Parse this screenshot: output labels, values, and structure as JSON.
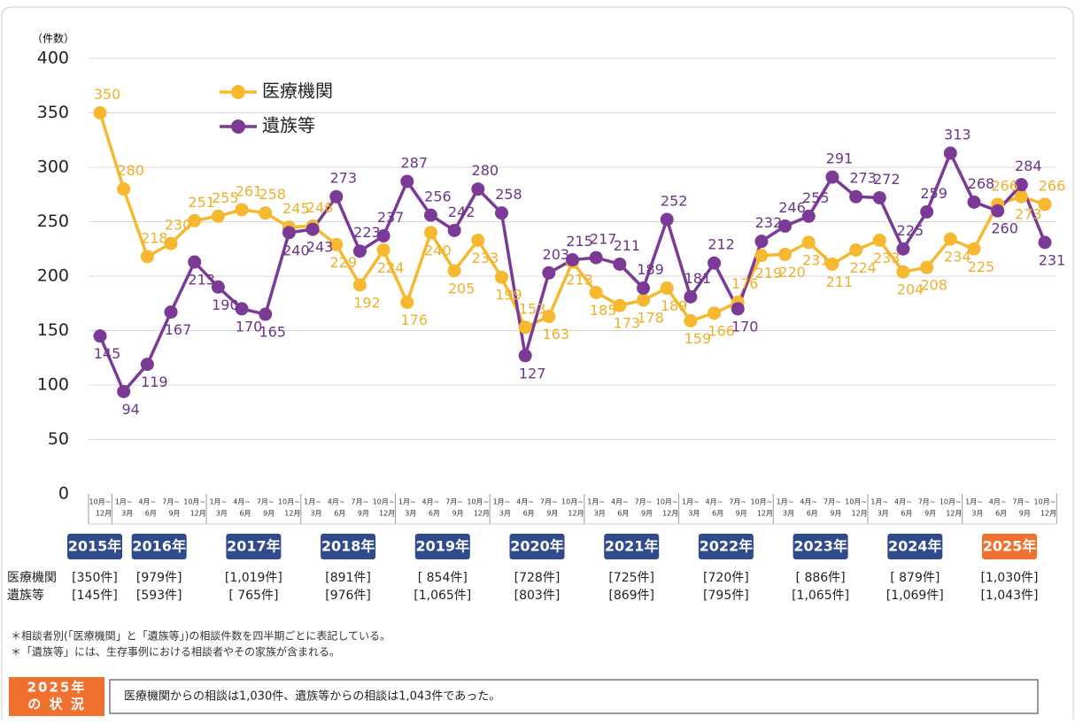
{
  "chart_data": {
    "type": "line",
    "y_label": "（件数）",
    "ylim": [
      0,
      400
    ],
    "yticks": [
      0,
      50,
      100,
      150,
      200,
      250,
      300,
      350,
      400
    ],
    "grid": true,
    "legend": "top-left",
    "categories": [
      [
        "10月~",
        "12月"
      ],
      [
        "1月~",
        "3月"
      ],
      [
        "4月~",
        "6月"
      ],
      [
        "7月~",
        "9月"
      ],
      [
        "10月~",
        "12月"
      ],
      [
        "1月~",
        "3月"
      ],
      [
        "4月~",
        "6月"
      ],
      [
        "7月~",
        "9月"
      ],
      [
        "10月~",
        "12月"
      ],
      [
        "1月~",
        "3月"
      ],
      [
        "4月~",
        "6月"
      ],
      [
        "7月~",
        "9月"
      ],
      [
        "10月~",
        "12月"
      ],
      [
        "1月~",
        "3月"
      ],
      [
        "4月~",
        "6月"
      ],
      [
        "7月~",
        "9月"
      ],
      [
        "10月~",
        "12月"
      ],
      [
        "1月~",
        "3月"
      ],
      [
        "4月~",
        "6月"
      ],
      [
        "7月~",
        "9月"
      ],
      [
        "10月~",
        "12月"
      ],
      [
        "1月~",
        "3月"
      ],
      [
        "4月~",
        "6月"
      ],
      [
        "7月~",
        "9月"
      ],
      [
        "10月~",
        "12月"
      ],
      [
        "1月~",
        "3月"
      ],
      [
        "4月~",
        "6月"
      ],
      [
        "7月~",
        "9月"
      ],
      [
        "10月~",
        "12月"
      ],
      [
        "1月~",
        "3月"
      ],
      [
        "4月~",
        "6月"
      ],
      [
        "7月~",
        "9月"
      ],
      [
        "10月~",
        "12月"
      ],
      [
        "1月~",
        "3月"
      ],
      [
        "4月~",
        "6月"
      ],
      [
        "7月~",
        "9月"
      ],
      [
        "10月~",
        "12月"
      ],
      [
        "1月~",
        "3月"
      ],
      [
        "4月~",
        "6月"
      ],
      [
        "7月~",
        "9月"
      ],
      [
        "10月~",
        "12月"
      ]
    ],
    "series": [
      {
        "name": "医療機関",
        "color": "#f5b82e",
        "label_color": "#eeb02a",
        "values": [
          350,
          280,
          218,
          230,
          251,
          255,
          261,
          258,
          245,
          246,
          229,
          192,
          224,
          176,
          240,
          205,
          233,
          199,
          153,
          163,
          213,
          185,
          173,
          178,
          189,
          159,
          166,
          176,
          219,
          220,
          231,
          211,
          224,
          233,
          204,
          208,
          234,
          225,
          266,
          273,
          266
        ]
      },
      {
        "name": "遺族等",
        "color": "#7b3a96",
        "label_color": "#6b3586",
        "values": [
          145,
          94,
          119,
          167,
          213,
          190,
          170,
          165,
          240,
          243,
          273,
          223,
          237,
          287,
          256,
          242,
          280,
          258,
          127,
          203,
          215,
          217,
          211,
          189,
          252,
          181,
          212,
          170,
          232,
          246,
          255,
          291,
          273,
          272,
          225,
          259,
          313,
          268,
          260,
          284,
          231
        ]
      }
    ],
    "years": [
      {
        "name": "2015年",
        "quarters": 1,
        "totals": [
          "[350件]",
          "[145件]"
        ]
      },
      {
        "name": "2016年",
        "quarters": 4,
        "totals": [
          "[979件]",
          "[593件]"
        ]
      },
      {
        "name": "2017年",
        "quarters": 4,
        "totals": [
          "[1,019件]",
          "[ 765件]"
        ]
      },
      {
        "name": "2018年",
        "quarters": 4,
        "totals": [
          "[891件]",
          "[976件]"
        ]
      },
      {
        "name": "2019年",
        "quarters": 4,
        "totals": [
          "[ 854件]",
          "[1,065件]"
        ]
      },
      {
        "name": "2020年",
        "quarters": 4,
        "totals": [
          "[728件]",
          "[803件]"
        ]
      },
      {
        "name": "2021年",
        "quarters": 4,
        "totals": [
          "[725件]",
          "[869件]"
        ]
      },
      {
        "name": "2022年",
        "quarters": 4,
        "totals": [
          "[720件]",
          "[795件]"
        ]
      },
      {
        "name": "2023年",
        "quarters": 4,
        "totals": [
          "[ 886件]",
          "[1,065件]"
        ]
      },
      {
        "name": "2024年",
        "quarters": 4,
        "totals": [
          "[ 879件]",
          "[1,069件]"
        ]
      },
      {
        "name": "2025年",
        "quarters": 4,
        "totals": [
          "[1,030件]",
          "[1,043件]"
        ],
        "highlight": true
      }
    ],
    "notes": [
      "＊相談者別(「医療機関」と「遺族等」)の相談件数を四半期ごとに表記している。",
      "＊「遺族等」には、生存事例における相談者やその家族が含まれる。"
    ],
    "status": {
      "label": [
        "2025年",
        "の 状 況"
      ],
      "text": "医療機関からの相談は1,030件、遺族等からの相談は1,043件であった。"
    }
  }
}
